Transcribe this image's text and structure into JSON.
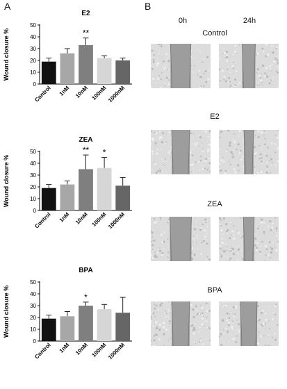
{
  "panel_a_letter": "A",
  "panel_b_letter": "B",
  "chart_data": [
    {
      "type": "bar",
      "title": "E2",
      "ylabel": "Wound closure %",
      "categories": [
        "Control",
        "1nM",
        "10nM",
        "100nM",
        "1000nM"
      ],
      "values": [
        19,
        26,
        33,
        22,
        20
      ],
      "errors": [
        3,
        4,
        6,
        2,
        2
      ],
      "significance": [
        "",
        "",
        "**",
        "",
        ""
      ],
      "ylim": [
        0,
        50
      ],
      "yticks": [
        0,
        10,
        20,
        30,
        40,
        50
      ],
      "bar_colors": [
        "#111111",
        "#a7a7a7",
        "#7f7f7f",
        "#d6d6d6",
        "#666666"
      ]
    },
    {
      "type": "bar",
      "title": "ZEA",
      "ylabel": "Wound closure %",
      "categories": [
        "Control",
        "1nM",
        "10nM",
        "100nM",
        "1000nM"
      ],
      "values": [
        19,
        22,
        35,
        36,
        21
      ],
      "errors": [
        3,
        3,
        12,
        9,
        7
      ],
      "significance": [
        "",
        "",
        "**",
        "*",
        ""
      ],
      "ylim": [
        0,
        50
      ],
      "yticks": [
        0,
        10,
        20,
        30,
        40,
        50
      ],
      "bar_colors": [
        "#111111",
        "#a7a7a7",
        "#7f7f7f",
        "#d6d6d6",
        "#666666"
      ]
    },
    {
      "type": "bar",
      "title": "BPA",
      "ylabel": "Wound closure %",
      "categories": [
        "Control",
        "1nM",
        "10nM",
        "100nM",
        "1000nM"
      ],
      "values": [
        19,
        21,
        30,
        27,
        24
      ],
      "errors": [
        3,
        4,
        3,
        4,
        13
      ],
      "significance": [
        "",
        "",
        "*",
        "",
        ""
      ],
      "ylim": [
        0,
        50
      ],
      "yticks": [
        0,
        10,
        20,
        30,
        40,
        50
      ],
      "bar_colors": [
        "#111111",
        "#a7a7a7",
        "#7f7f7f",
        "#d6d6d6",
        "#666666"
      ]
    }
  ],
  "micrographs": {
    "columns": [
      "0h",
      "24h"
    ],
    "rows": [
      {
        "label": "Control",
        "gap_0h": 0.34,
        "gap_24h": 0.22
      },
      {
        "label": "E2",
        "gap_0h": 0.3,
        "gap_24h": 0.16
      },
      {
        "label": "ZEA",
        "gap_0h": 0.36,
        "gap_24h": 0.18
      },
      {
        "label": "BPA",
        "gap_0h": 0.3,
        "gap_24h": 0.28
      }
    ]
  }
}
